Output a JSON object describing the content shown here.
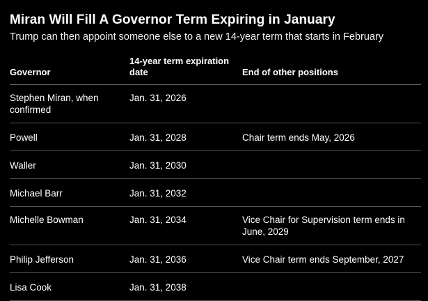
{
  "title": "Miran Will Fill A Governor Term Expiring in January",
  "subtitle": "Trump can then appoint someone else to a new 14-year term that starts in February",
  "table": {
    "headers": [
      "Governor",
      "14-year term expiration date",
      "End of other positions"
    ],
    "rows": [
      {
        "governor": "Stephen Miran, when confirmed",
        "expiration": "Jan. 31, 2026",
        "other": ""
      },
      {
        "governor": "Powell",
        "expiration": "Jan. 31, 2028",
        "other": "Chair term ends May, 2026"
      },
      {
        "governor": "Waller",
        "expiration": "Jan. 31, 2030",
        "other": ""
      },
      {
        "governor": "Michael Barr",
        "expiration": "Jan. 31, 2032",
        "other": ""
      },
      {
        "governor": "Michelle Bowman",
        "expiration": "Jan. 31, 2034",
        "other": "Vice Chair for Supervision term ends in June, 2029"
      },
      {
        "governor": "Philip Jefferson",
        "expiration": "Jan. 31, 2036",
        "other": "Vice Chair term ends September, 2027"
      },
      {
        "governor": "Lisa Cook",
        "expiration": "Jan. 31, 2038",
        "other": ""
      }
    ]
  },
  "colors": {
    "background": "#000000",
    "text": "#ffffff",
    "divider": "#555555"
  }
}
